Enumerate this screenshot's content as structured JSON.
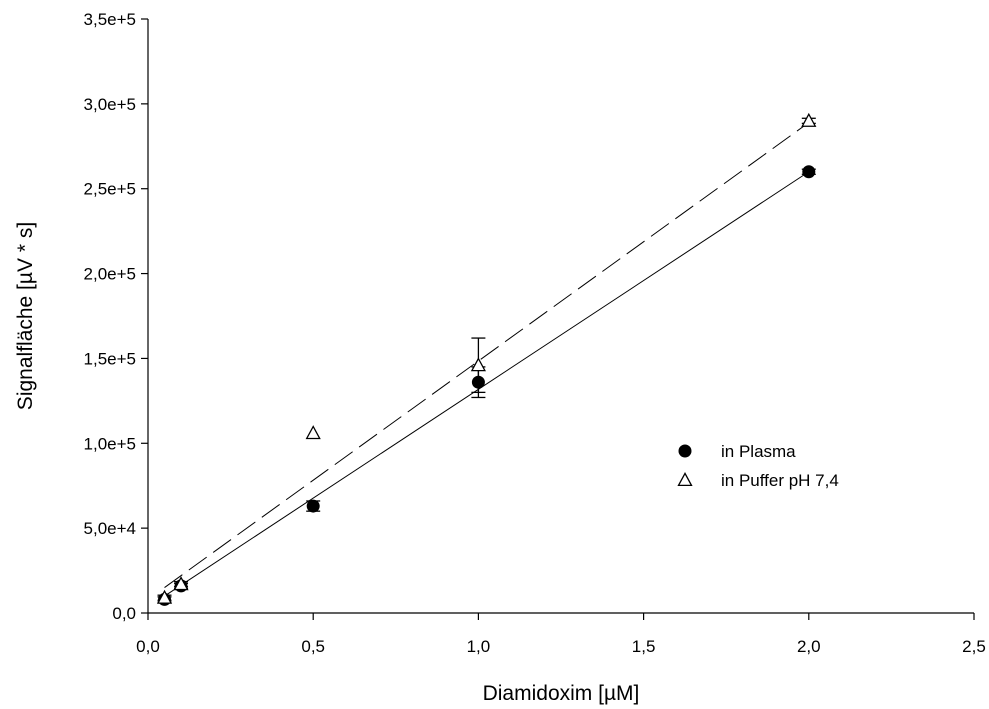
{
  "chart_data": {
    "type": "scatter",
    "xlabel": "Diamidoxim [µM]",
    "ylabel": "Signalfläche [µV * s]",
    "xlim": [
      0,
      2.5
    ],
    "ylim": [
      0,
      350000
    ],
    "x_ticks": [
      0,
      0.5,
      1.0,
      1.5,
      2.0,
      2.5
    ],
    "x_tick_labels": [
      "0,0",
      "0,5",
      "1,0",
      "1,5",
      "2,0",
      "2,5"
    ],
    "y_ticks": [
      0,
      50000,
      100000,
      150000,
      200000,
      250000,
      300000,
      350000
    ],
    "y_tick_labels": [
      "0,0",
      "5,0e+4",
      "1,0e+5",
      "1,5e+5",
      "2,0e+5",
      "2,5e+5",
      "3,0e+5",
      "3,5e+5"
    ],
    "grid": false,
    "legend_position": "right",
    "series": [
      {
        "name": "in Plasma",
        "marker": "filled-circle",
        "color": "#000000",
        "x": [
          0.05,
          0.1,
          0.5,
          1.0,
          2.0
        ],
        "y": [
          8000,
          16000,
          63000,
          136000,
          260000
        ],
        "error": [
          1500,
          1500,
          3000,
          9000,
          1500
        ],
        "fit": {
          "style": "solid",
          "x": [
            0.05,
            2.0
          ],
          "y": [
            10000,
            260000
          ]
        }
      },
      {
        "name": "in Puffer pH 7,4",
        "marker": "open-triangle",
        "color": "#000000",
        "x": [
          0.05,
          0.1,
          0.5,
          1.0,
          2.0
        ],
        "y": [
          9000,
          17000,
          106000,
          146000,
          290000
        ],
        "error": [
          1500,
          1500,
          0,
          16000,
          1500
        ],
        "fit": {
          "style": "dashed",
          "x": [
            0.05,
            2.0
          ],
          "y": [
            15000,
            289000
          ]
        }
      }
    ]
  }
}
